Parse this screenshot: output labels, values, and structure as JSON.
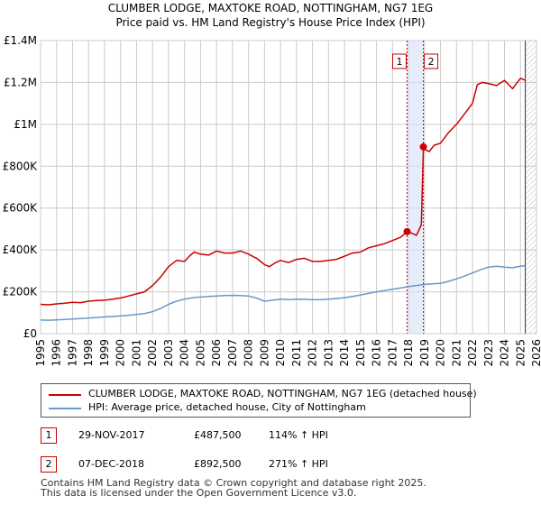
{
  "chart_data": {
    "type": "line",
    "title": "CLUMBER LODGE, MAXTOKE ROAD, NOTTINGHAM, NG7 1EG",
    "subtitle": "Price paid vs. HM Land Registry's House Price Index (HPI)",
    "xlabel": "",
    "ylabel": "",
    "xlim": [
      1995,
      2026
    ],
    "ylim": [
      0,
      1400000
    ],
    "grid": true,
    "x_ticks": [
      "1995",
      "1996",
      "1997",
      "1998",
      "1999",
      "2000",
      "2001",
      "2002",
      "2003",
      "2004",
      "2005",
      "2006",
      "2007",
      "2008",
      "2009",
      "2010",
      "2011",
      "2012",
      "2013",
      "2014",
      "2015",
      "2016",
      "2017",
      "2018",
      "2019",
      "2020",
      "2021",
      "2022",
      "2023",
      "2024",
      "2025",
      "2026"
    ],
    "y_ticks": [
      {
        "value": 0,
        "label": "£0"
      },
      {
        "value": 200000,
        "label": "£200K"
      },
      {
        "value": 400000,
        "label": "£400K"
      },
      {
        "value": 600000,
        "label": "£600K"
      },
      {
        "value": 800000,
        "label": "£800K"
      },
      {
        "value": 1000000,
        "label": "£1M"
      },
      {
        "value": 1200000,
        "label": "£1.2M"
      },
      {
        "value": 1400000,
        "label": "£1.4M"
      }
    ],
    "series": [
      {
        "name": "CLUMBER LODGE, MAXTOKE ROAD, NOTTINGHAM, NG7 1EG (detached house)",
        "color": "#cc0000",
        "x": [
          1995.0,
          1995.5,
          1996.0,
          1996.5,
          1997.0,
          1997.5,
          1998.0,
          1998.5,
          1999.0,
          1999.5,
          2000.0,
          2000.5,
          2001.0,
          2001.5,
          2002.0,
          2002.5,
          2003.0,
          2003.5,
          2004.0,
          2004.3,
          2004.6,
          2005.0,
          2005.5,
          2006.0,
          2006.5,
          2007.0,
          2007.5,
          2008.0,
          2008.5,
          2009.0,
          2009.3,
          2009.7,
          2010.0,
          2010.5,
          2011.0,
          2011.5,
          2012.0,
          2012.5,
          2013.0,
          2013.5,
          2014.0,
          2014.5,
          2015.0,
          2015.5,
          2016.0,
          2016.5,
          2017.0,
          2017.5,
          2017.91,
          2018.2,
          2018.5,
          2018.8,
          2018.93,
          2019.0,
          2019.3,
          2019.6,
          2020.0,
          2020.5,
          2021.0,
          2021.5,
          2022.0,
          2022.3,
          2022.6,
          2023.0,
          2023.5,
          2024.0,
          2024.5,
          2024.8,
          2025.0,
          2025.3
        ],
        "y": [
          140000,
          138000,
          142000,
          145000,
          150000,
          148000,
          155000,
          158000,
          160000,
          165000,
          170000,
          180000,
          190000,
          200000,
          230000,
          270000,
          320000,
          350000,
          345000,
          370000,
          390000,
          380000,
          375000,
          395000,
          385000,
          385000,
          395000,
          380000,
          360000,
          330000,
          320000,
          340000,
          350000,
          340000,
          355000,
          360000,
          345000,
          345000,
          350000,
          355000,
          370000,
          385000,
          390000,
          410000,
          420000,
          430000,
          445000,
          460000,
          487500,
          480000,
          470000,
          520000,
          892500,
          880000,
          870000,
          900000,
          910000,
          960000,
          1000000,
          1050000,
          1100000,
          1190000,
          1200000,
          1195000,
          1185000,
          1210000,
          1170000,
          1200000,
          1220000,
          1210000
        ]
      },
      {
        "name": "HPI: Average price, detached house, City of Nottingham",
        "color": "#6699cc",
        "x": [
          1995.0,
          1995.5,
          1996.0,
          1996.5,
          1997.0,
          1997.5,
          1998.0,
          1998.5,
          1999.0,
          1999.5,
          2000.0,
          2000.5,
          2001.0,
          2001.5,
          2002.0,
          2002.5,
          2003.0,
          2003.5,
          2004.0,
          2004.5,
          2005.0,
          2005.5,
          2006.0,
          2006.5,
          2007.0,
          2007.5,
          2008.0,
          2008.5,
          2009.0,
          2009.5,
          2010.0,
          2010.5,
          2011.0,
          2011.5,
          2012.0,
          2012.5,
          2013.0,
          2013.5,
          2014.0,
          2014.5,
          2015.0,
          2015.5,
          2016.0,
          2016.5,
          2017.0,
          2017.5,
          2018.0,
          2018.5,
          2019.0,
          2019.5,
          2020.0,
          2020.5,
          2021.0,
          2021.5,
          2022.0,
          2022.5,
          2023.0,
          2023.5,
          2024.0,
          2024.5,
          2025.0,
          2025.3
        ],
        "y": [
          65000,
          64000,
          66000,
          68000,
          70000,
          72000,
          75000,
          77000,
          80000,
          82000,
          85000,
          88000,
          92000,
          96000,
          105000,
          120000,
          140000,
          155000,
          165000,
          172000,
          175000,
          178000,
          180000,
          182000,
          183000,
          182000,
          180000,
          170000,
          155000,
          160000,
          165000,
          163000,
          165000,
          164000,
          162000,
          163000,
          165000,
          168000,
          172000,
          178000,
          185000,
          192000,
          200000,
          206000,
          212000,
          218000,
          225000,
          230000,
          235000,
          238000,
          240000,
          250000,
          262000,
          275000,
          290000,
          305000,
          318000,
          322000,
          318000,
          315000,
          322000,
          325000
        ]
      }
    ],
    "annotations": [
      {
        "label": "1",
        "x": 2017.91,
        "y": 487500,
        "date": "29-NOV-2017",
        "price": "£487,500",
        "hpi": "114% ↑ HPI"
      },
      {
        "label": "2",
        "x": 2018.93,
        "y": 892500,
        "date": "07-DEC-2018",
        "price": "£892,500",
        "hpi": "271% ↑ HPI"
      }
    ]
  },
  "footer": {
    "line1": "Contains HM Land Registry data © Crown copyright and database right 2025.",
    "line2": "This data is licensed under the Open Government Licence v3.0."
  }
}
